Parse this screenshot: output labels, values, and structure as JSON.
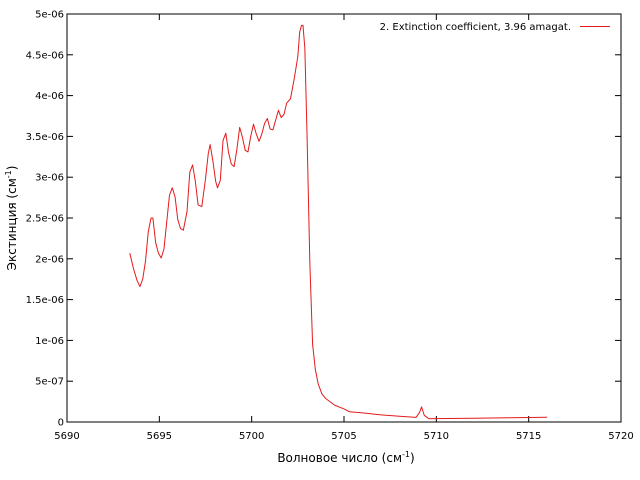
{
  "chart_data": {
    "type": "line",
    "title": "",
    "xlabel": "Волновое число (см",
    "xlabel_sup": "-1",
    "xlabel_close": ")",
    "ylabel": "Экстинция (см",
    "ylabel_sup": "-1",
    "ylabel_close": ")",
    "xlim": [
      5690,
      5720
    ],
    "ylim": [
      0,
      5e-06
    ],
    "x_ticks": [
      5690,
      5695,
      5700,
      5705,
      5710,
      5715,
      5720
    ],
    "x_tick_labels": [
      "5690",
      "5695",
      "5700",
      "5705",
      "5710",
      "5715",
      "5720"
    ],
    "y_ticks": [
      0,
      5e-07,
      1e-06,
      1.5e-06,
      2e-06,
      2.5e-06,
      3e-06,
      3.5e-06,
      4e-06,
      4.5e-06,
      5e-06
    ],
    "y_tick_labels": [
      "0",
      "5e-07",
      "1e-06",
      "1.5e-06",
      "2e-06",
      "2.5e-06",
      "3e-06",
      "3.5e-06",
      "4e-06",
      "4.5e-06",
      "5e-06"
    ],
    "grid": false,
    "legend_position": "top-right",
    "series": [
      {
        "name": "2. Extinction coefficient, 3.96 amagat.",
        "color": "#e41a1c",
        "points": [
          [
            5693.4,
            2.07e-06
          ],
          [
            5693.6,
            1.88e-06
          ],
          [
            5693.8,
            1.73e-06
          ],
          [
            5693.95,
            1.66e-06
          ],
          [
            5694.1,
            1.75e-06
          ],
          [
            5694.25,
            1.97e-06
          ],
          [
            5694.4,
            2.33e-06
          ],
          [
            5694.55,
            2.5e-06
          ],
          [
            5694.65,
            2.5e-06
          ],
          [
            5694.8,
            2.2e-06
          ],
          [
            5694.95,
            2.07e-06
          ],
          [
            5695.1,
            2.01e-06
          ],
          [
            5695.25,
            2.12e-06
          ],
          [
            5695.4,
            2.45e-06
          ],
          [
            5695.55,
            2.78e-06
          ],
          [
            5695.7,
            2.87e-06
          ],
          [
            5695.85,
            2.76e-06
          ],
          [
            5696.0,
            2.48e-06
          ],
          [
            5696.15,
            2.37e-06
          ],
          [
            5696.3,
            2.35e-06
          ],
          [
            5696.5,
            2.58e-06
          ],
          [
            5696.65,
            3.06e-06
          ],
          [
            5696.8,
            3.15e-06
          ],
          [
            5696.95,
            2.95e-06
          ],
          [
            5697.1,
            2.66e-06
          ],
          [
            5697.3,
            2.64e-06
          ],
          [
            5697.5,
            2.98e-06
          ],
          [
            5697.65,
            3.29e-06
          ],
          [
            5697.75,
            3.4e-06
          ],
          [
            5697.9,
            3.2e-06
          ],
          [
            5698.05,
            2.95e-06
          ],
          [
            5698.15,
            2.87e-06
          ],
          [
            5698.3,
            2.96e-06
          ],
          [
            5698.45,
            3.45e-06
          ],
          [
            5698.6,
            3.54e-06
          ],
          [
            5698.75,
            3.3e-06
          ],
          [
            5698.9,
            3.16e-06
          ],
          [
            5699.05,
            3.13e-06
          ],
          [
            5699.2,
            3.34e-06
          ],
          [
            5699.35,
            3.61e-06
          ],
          [
            5699.5,
            3.49e-06
          ],
          [
            5699.65,
            3.33e-06
          ],
          [
            5699.8,
            3.31e-06
          ],
          [
            5699.95,
            3.5e-06
          ],
          [
            5700.1,
            3.65e-06
          ],
          [
            5700.25,
            3.53e-06
          ],
          [
            5700.4,
            3.44e-06
          ],
          [
            5700.55,
            3.53e-06
          ],
          [
            5700.7,
            3.66e-06
          ],
          [
            5700.85,
            3.72e-06
          ],
          [
            5701.0,
            3.59e-06
          ],
          [
            5701.15,
            3.58e-06
          ],
          [
            5701.3,
            3.7e-06
          ],
          [
            5701.45,
            3.82e-06
          ],
          [
            5701.6,
            3.73e-06
          ],
          [
            5701.75,
            3.77e-06
          ],
          [
            5701.9,
            3.91e-06
          ],
          [
            5702.1,
            3.96e-06
          ],
          [
            5702.3,
            4.2e-06
          ],
          [
            5702.5,
            4.48e-06
          ],
          [
            5702.6,
            4.78e-06
          ],
          [
            5702.7,
            4.86e-06
          ],
          [
            5702.78,
            4.86e-06
          ],
          [
            5702.88,
            4.58e-06
          ],
          [
            5703.0,
            3.5e-06
          ],
          [
            5703.15,
            1.95e-06
          ],
          [
            5703.3,
            9.5e-07
          ],
          [
            5703.45,
            6.4e-07
          ],
          [
            5703.6,
            4.7e-07
          ],
          [
            5703.8,
            3.45e-07
          ],
          [
            5704.0,
            2.9e-07
          ],
          [
            5704.5,
            2.05e-07
          ],
          [
            5705.0,
            1.6e-07
          ],
          [
            5705.3,
            1.25e-07
          ],
          [
            5706.0,
            1.12e-07
          ],
          [
            5707.0,
            8.8e-08
          ],
          [
            5708.0,
            7e-08
          ],
          [
            5708.9,
            5.6e-08
          ],
          [
            5709.1,
            1.2e-07
          ],
          [
            5709.2,
            1.85e-07
          ],
          [
            5709.35,
            8e-08
          ],
          [
            5709.6,
            4e-08
          ],
          [
            5710.0,
            4.2e-08
          ],
          [
            5712.0,
            4.6e-08
          ],
          [
            5714.0,
            5.2e-08
          ],
          [
            5716.0,
            5.9e-08
          ]
        ]
      }
    ]
  }
}
